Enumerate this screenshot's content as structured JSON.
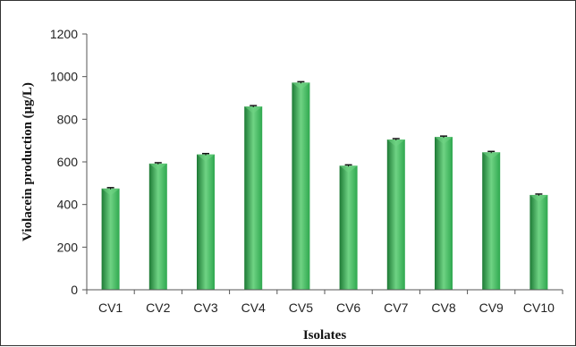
{
  "chart_data": {
    "type": "bar",
    "title": "",
    "xlabel": "Isolates",
    "ylabel": "Violacein production (μg/L)",
    "categories": [
      "CV1",
      "CV2",
      "CV3",
      "CV4",
      "CV5",
      "CV6",
      "CV7",
      "CV8",
      "CV9",
      "CV10"
    ],
    "values": [
      475,
      592,
      635,
      860,
      972,
      582,
      705,
      717,
      645,
      445
    ],
    "errors": [
      4,
      4,
      4,
      4,
      4,
      4,
      4,
      4,
      4,
      4
    ],
    "ylim": [
      0,
      1200
    ],
    "yticks": [
      "0",
      "200",
      "400",
      "600",
      "800",
      "1000",
      "1200"
    ],
    "grid": false,
    "legend": "none",
    "bar_color": "#2fa84f",
    "bar_highlight": "#6fd384",
    "bar_shadow": "#1d7a35"
  }
}
